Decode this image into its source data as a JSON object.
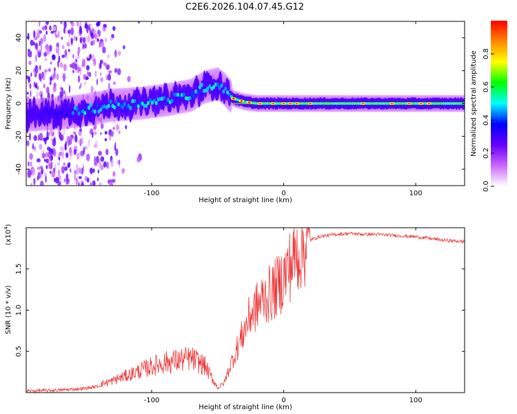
{
  "title": "C2E6.2026.104.07.45.G12",
  "colorbar": {
    "label": "Normalized spectral amplitude",
    "ticks": [
      0.0,
      0.2,
      0.4,
      0.6,
      0.8
    ],
    "tick_labels": [
      "0.0",
      "0.2",
      "0.4",
      "0.6",
      "0.8"
    ],
    "range": [
      0,
      1
    ],
    "stops": [
      "#ffffff",
      "#cc66ff",
      "#6600ff",
      "#0000ff",
      "#00ffff",
      "#00ff00",
      "#ffff00",
      "#ff8800",
      "#ff0000"
    ]
  },
  "chart_data": [
    {
      "type": "heatmap",
      "title": "C2E6.2026.104.07.45.G12",
      "xlabel": "Height of straight line (km)",
      "ylabel": "Frequency (Hz)",
      "xlim": [
        -195,
        137
      ],
      "ylim": [
        -50,
        50
      ],
      "xticks": [
        -100,
        0,
        100
      ],
      "xtick_labels": [
        "-100",
        "0",
        "100"
      ],
      "yticks": [
        -40,
        -20,
        0,
        20,
        40
      ],
      "ytick_labels": [
        "-40",
        "-20",
        "0",
        "20",
        "40"
      ],
      "ridge": {
        "x": [
          -190,
          -170,
          -150,
          -130,
          -110,
          -90,
          -70,
          -60,
          -50,
          -45,
          -42,
          -38,
          -30,
          -20,
          -10,
          0,
          20,
          50,
          80,
          100,
          137
        ],
        "y": [
          -7,
          -6,
          -4,
          -1,
          0,
          2,
          5,
          10,
          12,
          9,
          6,
          3,
          1,
          0,
          0,
          0,
          0,
          0,
          0,
          0,
          0
        ]
      }
    },
    {
      "type": "line",
      "xlabel": "Height of straight line (km)",
      "ylabel": "SNR (10 * v/v)",
      "y_multiplier_label": "(x10",
      "y_multiplier_exp": "4",
      "y_multiplier_close": ")",
      "xlim": [
        -195,
        137
      ],
      "ylim": [
        0,
        2.0
      ],
      "xticks": [
        -100,
        0,
        100
      ],
      "xtick_labels": [
        "-100",
        "0",
        "100"
      ],
      "yticks": [
        0.5,
        1.0,
        1.5
      ],
      "ytick_labels": [
        "0.5",
        "1.0",
        "1.5"
      ],
      "series": [
        {
          "name": "SNR",
          "color": "#ee3333",
          "x": [
            -195,
            -170,
            -150,
            -140,
            -130,
            -120,
            -110,
            -100,
            -90,
            -80,
            -70,
            -60,
            -50,
            -45,
            -40,
            -35,
            -30,
            -25,
            -20,
            -15,
            -10,
            -5,
            0,
            5,
            10,
            15,
            20,
            25,
            30,
            40,
            50,
            60,
            70,
            80,
            90,
            100,
            110,
            120,
            137
          ],
          "y": [
            0.02,
            0.03,
            0.05,
            0.08,
            0.12,
            0.17,
            0.22,
            0.27,
            0.31,
            0.33,
            0.35,
            0.28,
            0.05,
            0.12,
            0.35,
            0.55,
            0.75,
            0.95,
            1.05,
            1.15,
            1.2,
            1.28,
            1.4,
            1.55,
            1.68,
            1.78,
            1.85,
            1.88,
            1.9,
            1.92,
            1.93,
            1.92,
            1.92,
            1.91,
            1.9,
            1.89,
            1.87,
            1.85,
            1.83
          ]
        }
      ]
    }
  ]
}
